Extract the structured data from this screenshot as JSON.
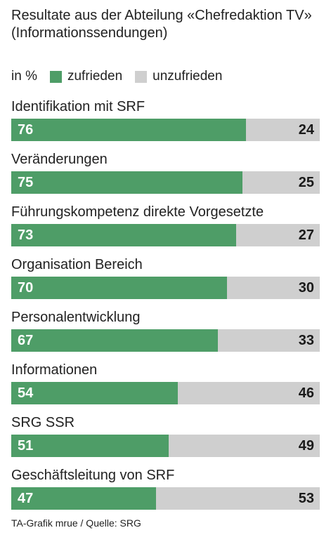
{
  "colors": {
    "satisfied": "#4e9d67",
    "unsatisfied": "#cfcfcf"
  },
  "chart_data": {
    "type": "bar",
    "orientation": "horizontal-stacked",
    "title": "Resultate aus der Abteilung «Chefredaktion TV» (Informationssendungen)",
    "unit": "in %",
    "categories": [
      "Identifikation mit SRF",
      "Veränderungen",
      "Führungskompetenz direkte Vorgesetzte",
      "Organisation Bereich",
      "Personalentwicklung",
      "Informationen",
      "SRG SSR",
      "Geschäftsleitung von SRF"
    ],
    "series": [
      {
        "name": "zufrieden",
        "color": "#4e9d67",
        "values": [
          76,
          75,
          73,
          70,
          67,
          54,
          51,
          47
        ]
      },
      {
        "name": "unzufrieden",
        "color": "#cfcfcf",
        "values": [
          24,
          25,
          27,
          30,
          33,
          46,
          49,
          53
        ]
      }
    ],
    "xlim": [
      0,
      100
    ],
    "grid": false,
    "legend": "top-left"
  },
  "source": "TA-Grafik mrue / Quelle: SRG"
}
